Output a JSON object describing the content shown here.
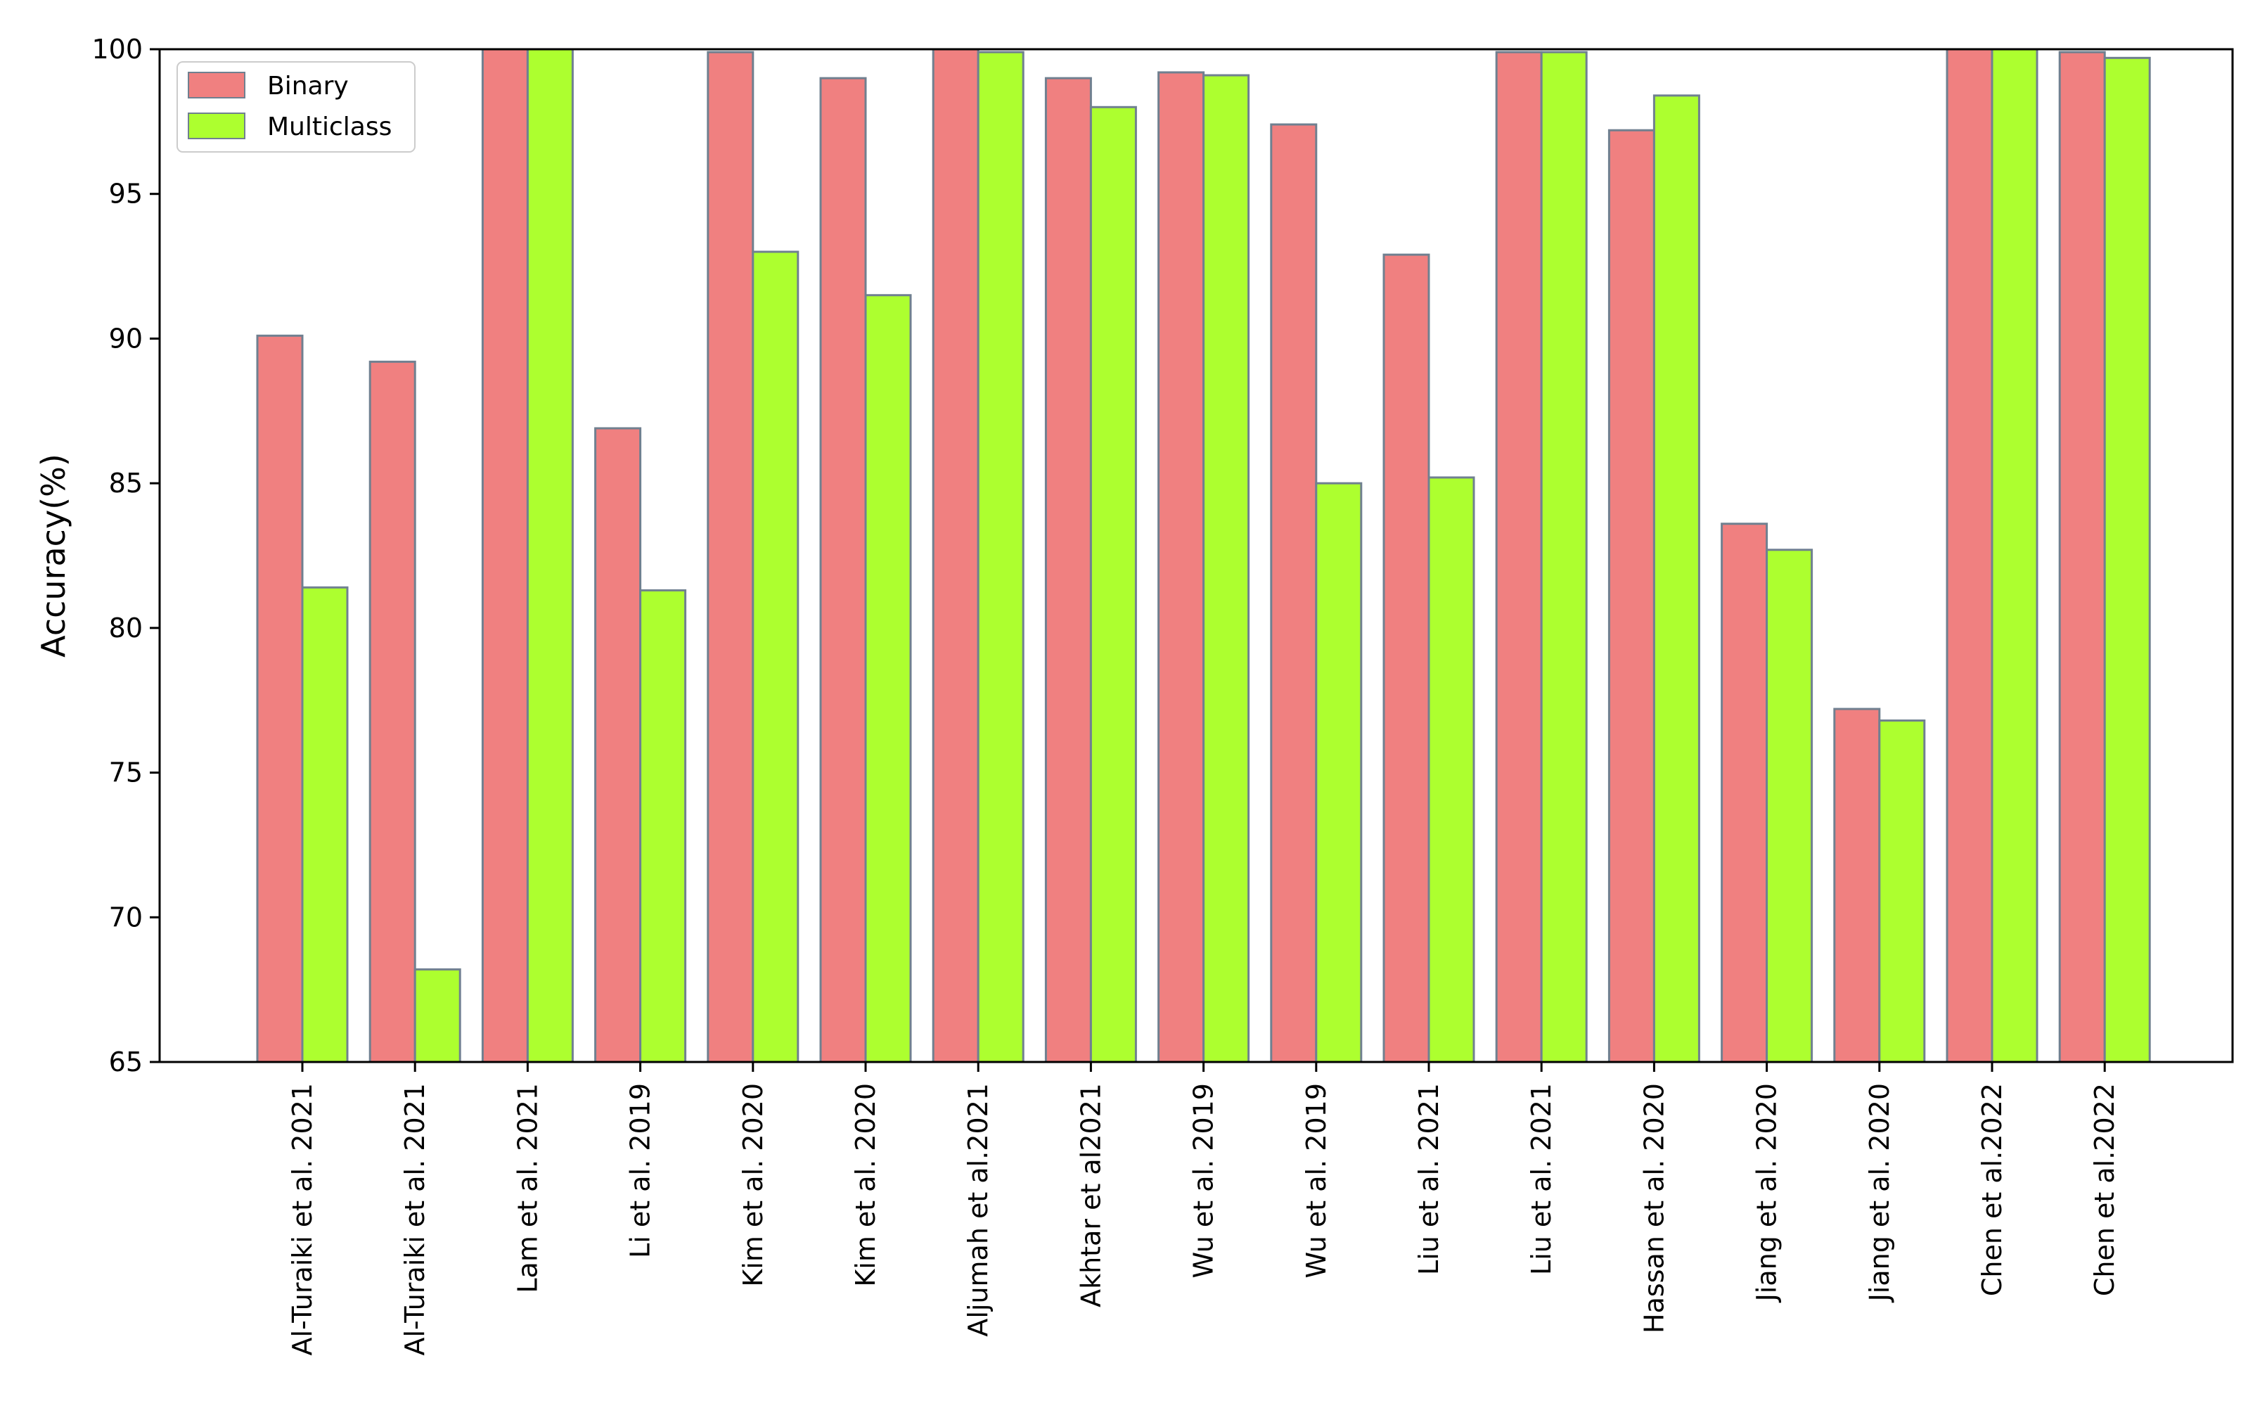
{
  "chart_data": {
    "type": "bar",
    "title": "",
    "xlabel": "",
    "ylabel": "Accuracy(%)",
    "ylim": [
      65,
      100
    ],
    "yticks": [
      65,
      70,
      75,
      80,
      85,
      90,
      95,
      100
    ],
    "grid": false,
    "legend_position": "top-left",
    "categories": [
      "Al-Turaiki et al. 2021",
      "Al-Turaiki et al. 2021",
      "Lam et al. 2021",
      "Li et al. 2019",
      "Kim et al. 2020",
      "Kim et al. 2020",
      "Aljumah et al.2021",
      "Akhtar et al2021",
      "Wu et al. 2019",
      "Wu et al. 2019",
      "Liu et al. 2021",
      "Liu et al. 2021",
      "Hassan et al. 2020",
      "Jiang et al. 2020",
      "Jiang et al. 2020",
      "Chen et al.2022",
      "Chen et al.2022"
    ],
    "series": [
      {
        "name": "Binary",
        "color": "#f08080",
        "values": [
          90.1,
          89.2,
          100,
          86.9,
          99.9,
          99.0,
          100,
          99.0,
          99.2,
          97.4,
          92.9,
          99.9,
          97.2,
          83.6,
          77.2,
          100,
          99.9
        ]
      },
      {
        "name": "Multiclass",
        "color": "#adff2f",
        "values": [
          81.4,
          68.2,
          100,
          81.3,
          93.0,
          91.5,
          99.9,
          98.0,
          99.1,
          85.0,
          85.2,
          99.9,
          98.4,
          82.7,
          76.8,
          100,
          99.7
        ]
      }
    ],
    "bar_edge_color": "#708090"
  }
}
